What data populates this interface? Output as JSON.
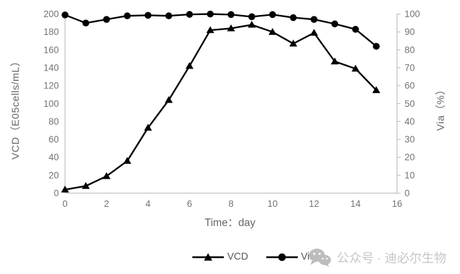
{
  "chart_data": {
    "type": "line",
    "title": "",
    "xlabel": "Time：day",
    "ylabel_left": "VCD（E05cells/mL）",
    "ylabel_right": "Via（%）",
    "x": [
      0,
      1,
      2,
      3,
      4,
      5,
      6,
      7,
      8,
      9,
      10,
      11,
      12,
      13,
      14,
      15
    ],
    "series": [
      {
        "name": "VCD",
        "axis": "left",
        "marker": "triangle",
        "values": [
          4,
          8,
          19,
          36,
          73,
          104,
          142,
          182,
          184,
          188,
          180,
          167,
          179,
          147,
          139,
          115
        ]
      },
      {
        "name": "Via",
        "axis": "right",
        "marker": "circle",
        "values": [
          99.5,
          95,
          97,
          99,
          99.3,
          99,
          99.8,
          100,
          99.7,
          98.5,
          99.7,
          98,
          97,
          94.5,
          91.5,
          82
        ]
      }
    ],
    "xlim": [
      0,
      16
    ],
    "x_ticks": [
      0,
      2,
      4,
      6,
      8,
      10,
      12,
      14,
      16
    ],
    "ylim_left": [
      0,
      200
    ],
    "y_ticks_left": [
      0,
      20,
      40,
      60,
      80,
      100,
      120,
      140,
      160,
      180,
      200
    ],
    "ylim_right": [
      0,
      100
    ],
    "y_ticks_right": [
      0,
      10,
      20,
      30,
      40,
      50,
      60,
      70,
      80,
      90,
      100
    ],
    "grid": false,
    "legend_position": "bottom-center"
  },
  "legend": {
    "items": [
      {
        "label": "VCD",
        "marker": "triangle"
      },
      {
        "label": "Via",
        "marker": "circle"
      }
    ]
  },
  "watermark": {
    "icon": "wechat-icon",
    "text": "公众号 · 迪必尔生物"
  },
  "colors": {
    "series_line": "#000000",
    "marker_fill": "#000000",
    "axis_line": "#bfbfbf",
    "tick_label": "#737373",
    "axis_title": "#666666",
    "legend_text": "#595959",
    "watermark": "#c6c6c6",
    "background": "#ffffff"
  }
}
